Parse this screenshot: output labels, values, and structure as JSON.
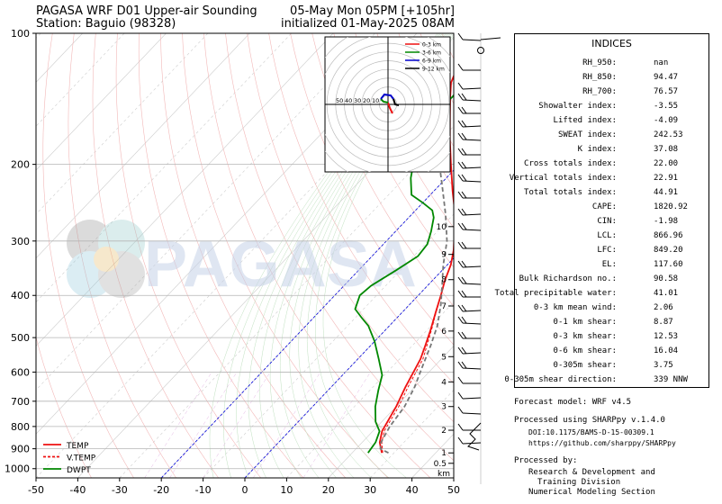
{
  "header": {
    "title_left_1": "PAGASA WRF D01 Upper-air Sounding",
    "title_left_2": "Station: Baguio (98328)",
    "title_right_1": "05-May Mon 05PM [+105hr]",
    "title_right_2": "initialized 01-May-2025 08AM"
  },
  "watermark": "PAGASA",
  "chart_data": {
    "type": "line",
    "x_ticks": [
      -50,
      -40,
      -30,
      -20,
      -10,
      0,
      10,
      20,
      30,
      40,
      50
    ],
    "xlim": [
      -50,
      50
    ],
    "y_ticks": [
      100,
      200,
      300,
      400,
      500,
      600,
      700,
      800,
      900,
      1000
    ],
    "ylim": [
      1050,
      100
    ],
    "y_scale": "log",
    "km_labels": [
      {
        "km": "10",
        "p": 278
      },
      {
        "km": "9",
        "p": 322
      },
      {
        "km": "8",
        "p": 368
      },
      {
        "km": "7",
        "p": 423
      },
      {
        "km": "6",
        "p": 483
      },
      {
        "km": "5",
        "p": 553
      },
      {
        "km": "4",
        "p": 632
      },
      {
        "km": "3",
        "p": 720
      },
      {
        "km": "2",
        "p": 816
      },
      {
        "km": "1",
        "p": 920
      },
      {
        "km": "0.5",
        "p": 972
      }
    ],
    "km_unit": "km",
    "legend": [
      {
        "name": "TEMP",
        "color": "#ee1111",
        "dash": "solid"
      },
      {
        "name": "V.TEMP",
        "color": "#ee1111",
        "dash": "dashed"
      },
      {
        "name": "DWPT",
        "color": "#008800",
        "dash": "solid"
      }
    ],
    "series": [
      {
        "name": "TEMP",
        "points": [
          [
            27.1,
            920
          ],
          [
            24.2,
            870
          ],
          [
            22.2,
            820
          ],
          [
            20.0,
            720
          ],
          [
            17.8,
            650
          ],
          [
            15.0,
            560
          ],
          [
            13.0,
            520
          ],
          [
            10.8,
            480
          ],
          [
            8.2,
            440
          ],
          [
            5.4,
            400
          ],
          [
            3.0,
            370
          ],
          [
            0.8,
            340
          ],
          [
            -1.8,
            315
          ],
          [
            -5.2,
            290
          ],
          [
            -8.2,
            270
          ],
          [
            -11.6,
            250
          ],
          [
            -15.6,
            230
          ],
          [
            -22,
            200
          ],
          [
            -28,
            175
          ],
          [
            -33.2,
            155
          ],
          [
            -37.5,
            140
          ],
          [
            -40.5,
            130
          ],
          [
            -42.5,
            120
          ],
          [
            -43.5,
            113
          ],
          [
            -43,
            108
          ],
          [
            -41.7,
            100
          ]
        ]
      },
      {
        "name": "V.TEMP",
        "points": [
          [
            27.3,
            920
          ],
          [
            24.7,
            870
          ],
          [
            22.7,
            820
          ],
          [
            20.6,
            720
          ],
          [
            18.4,
            650
          ],
          [
            15.6,
            560
          ],
          [
            13.4,
            520
          ],
          [
            11.0,
            480
          ],
          [
            8.3,
            440
          ],
          [
            5.4,
            400
          ],
          [
            3.0,
            370
          ]
        ]
      },
      {
        "name": "DWPT",
        "points": [
          [
            23.8,
            920
          ],
          [
            23.2,
            870
          ],
          [
            21.6,
            820
          ],
          [
            18.5,
            780
          ],
          [
            15,
            720
          ],
          [
            12,
            660
          ],
          [
            9.5,
            610
          ],
          [
            5,
            560
          ],
          [
            0,
            510
          ],
          [
            -5,
            470
          ],
          [
            -8.5,
            450
          ],
          [
            -12,
            430
          ],
          [
            -14,
            400
          ],
          [
            -13.5,
            380
          ],
          [
            -11,
            350
          ],
          [
            -9,
            325
          ],
          [
            -9.5,
            305
          ],
          [
            -11.5,
            285
          ],
          [
            -14,
            265
          ],
          [
            -16,
            255
          ],
          [
            -20,
            245
          ],
          [
            -24.5,
            235
          ],
          [
            -28.5,
            215
          ],
          [
            -31,
            200
          ],
          [
            -31.5,
            190
          ],
          [
            -31.8,
            180
          ],
          [
            -31.7,
            175
          ],
          [
            -31.9,
            168
          ],
          [
            -33.5,
            160
          ],
          [
            -35,
            155
          ],
          [
            -37.5,
            148
          ],
          [
            -37,
            140
          ],
          [
            -37.5,
            130
          ],
          [
            -38,
            120
          ],
          [
            -38,
            113
          ],
          [
            -37.5,
            106
          ],
          [
            -36,
            102
          ],
          [
            -36.5,
            100
          ]
        ]
      },
      {
        "name": "parcel",
        "points": [
          [
            28.7,
            920
          ],
          [
            25.8,
            900
          ],
          [
            24.5,
            870
          ],
          [
            23.0,
            800
          ],
          [
            22.0,
            720
          ],
          [
            20,
            650
          ],
          [
            17.5,
            590
          ],
          [
            14.3,
            520
          ],
          [
            11.5,
            470
          ],
          [
            7.5,
            420
          ],
          [
            3.5,
            380
          ],
          [
            -1,
            340
          ],
          [
            -5.5,
            300
          ],
          [
            -12,
            260
          ],
          [
            -19,
            225
          ],
          [
            -26,
            195
          ],
          [
            -33,
            168
          ],
          [
            -40,
            145
          ],
          [
            -45,
            130
          ],
          [
            -48.5,
            118
          ],
          [
            -50,
            113
          ]
        ]
      }
    ]
  },
  "hodograph": {
    "legend": [
      {
        "name": "0-3 km",
        "color": "#ee1111"
      },
      {
        "name": "3-6 km",
        "color": "#008800"
      },
      {
        "name": "6-9 km",
        "color": "#0000cc"
      },
      {
        "name": "9-12 km",
        "color": "#000000"
      }
    ],
    "ring_labels": [
      "50",
      "40",
      "30",
      "20",
      "10"
    ]
  },
  "indices": {
    "title": "INDICES",
    "rows": [
      {
        "label": "RH_950:",
        "value": "nan"
      },
      {
        "label": "RH_850:",
        "value": "94.47"
      },
      {
        "label": "RH_700:",
        "value": "76.57"
      },
      {
        "label": "Showalter index:",
        "value": "-3.55"
      },
      {
        "label": "Lifted index:",
        "value": "-4.09"
      },
      {
        "label": "SWEAT index:",
        "value": "242.53"
      },
      {
        "label": "K index:",
        "value": "37.08"
      },
      {
        "label": "Cross totals index:",
        "value": "22.00"
      },
      {
        "label": "Vertical totals index:",
        "value": "22.91"
      },
      {
        "label": "Total totals index:",
        "value": "44.91"
      },
      {
        "label": "CAPE:",
        "value": "1820.92"
      },
      {
        "label": "CIN:",
        "value": "-1.98"
      },
      {
        "label": "LCL:",
        "value": "866.96"
      },
      {
        "label": "LFC:",
        "value": "849.20"
      },
      {
        "label": "EL:",
        "value": "117.60"
      },
      {
        "label": "Bulk Richardson no.:",
        "value": "90.58"
      },
      {
        "label": "Total precipitable water:",
        "value": "41.01"
      },
      {
        "label": "0-3 km mean wind:",
        "value": "2.06"
      },
      {
        "label": "0-1 km shear:",
        "value": "8.87"
      },
      {
        "label": "0-3 km shear:",
        "value": "12.53"
      },
      {
        "label": "0-6 km shear:",
        "value": "16.04"
      },
      {
        "label": "0-305m shear:",
        "value": "3.75"
      },
      {
        "label": "0-305m shear direction:",
        "value": "339 NNW"
      }
    ]
  },
  "footer": {
    "model": "Forecast model: WRF v4.5",
    "processed": "Processed using SHARPpy v.1.4.0",
    "doi": "DOI:10.1175/BAMS-D-15-00309.1",
    "url": "https://github.com/sharppy/SHARPpy",
    "by": "Processed by:",
    "org1": "Research & Development and",
    "org2": "Training Division",
    "org3": "Numerical Modeling Section"
  }
}
